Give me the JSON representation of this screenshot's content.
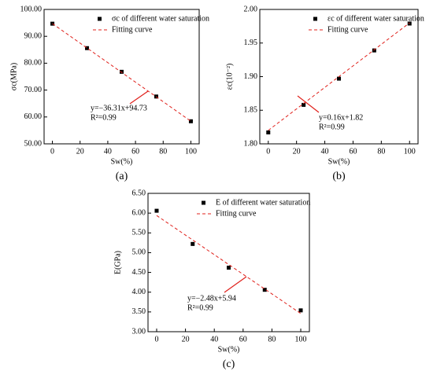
{
  "chart_data": [
    {
      "type": "scatter",
      "label": "(a)",
      "x_label": "Sw(%)",
      "y_label": "σc(MPa)",
      "xlim": [
        -6,
        106
      ],
      "xticks": [
        0,
        20,
        40,
        60,
        80,
        100
      ],
      "ylim": [
        50,
        100
      ],
      "yticks": [
        {
          "value": 50,
          "label": "50.00"
        },
        {
          "value": 60,
          "label": "60.00"
        },
        {
          "value": 70,
          "label": "70.00"
        },
        {
          "value": 80,
          "label": "80.00"
        },
        {
          "value": 90,
          "label": "90.00"
        },
        {
          "value": 100,
          "label": "100.00"
        }
      ],
      "series": [
        {
          "name": "σc of different water saturation",
          "color": "#000000",
          "x": [
            0,
            25,
            50,
            75,
            100
          ],
          "values": [
            94.7,
            85.6,
            76.8,
            67.6,
            58.4
          ]
        },
        {
          "name": "Fitting curve",
          "color": "#e0201b",
          "x": [
            0,
            100
          ],
          "values": [
            94.73,
            58.42
          ]
        }
      ],
      "annotations": [
        "y=−36.31x+94.73",
        "R²=0.99"
      ]
    },
    {
      "type": "scatter",
      "label": "(b)",
      "x_label": "Sw(%)",
      "y_label": "εc(10⁻²)",
      "xlim": [
        -6,
        106
      ],
      "xticks": [
        0,
        20,
        40,
        60,
        80,
        100
      ],
      "ylim": [
        1.8,
        2.0
      ],
      "yticks": [
        {
          "value": 1.8,
          "label": "1.80"
        },
        {
          "value": 1.85,
          "label": "1.85"
        },
        {
          "value": 1.9,
          "label": "1.90"
        },
        {
          "value": 1.95,
          "label": "1.95"
        },
        {
          "value": 2.0,
          "label": "2.00"
        }
      ],
      "series": [
        {
          "name": "εc of different water saturation",
          "color": "#000000",
          "x": [
            0,
            25,
            50,
            75,
            100
          ],
          "values": [
            1.817,
            1.858,
            1.897,
            1.939,
            1.979
          ]
        },
        {
          "name": "Fitting curve",
          "color": "#e0201b",
          "x": [
            0,
            100
          ],
          "values": [
            1.82,
            1.98
          ]
        }
      ],
      "annotations": [
        "y=0.16x+1.82",
        "R²=0.99"
      ]
    },
    {
      "type": "scatter",
      "label": "(c)",
      "x_label": "Sw(%)",
      "y_label": "E(GPa)",
      "xlim": [
        -6,
        106
      ],
      "xticks": [
        0,
        20,
        40,
        60,
        80,
        100
      ],
      "ylim": [
        3,
        6.5
      ],
      "yticks": [
        {
          "value": 3,
          "label": "3.00"
        },
        {
          "value": 3.5,
          "label": "3.50"
        },
        {
          "value": 4,
          "label": "4.00"
        },
        {
          "value": 4.5,
          "label": "4.50"
        },
        {
          "value": 5,
          "label": "5.00"
        },
        {
          "value": 5.5,
          "label": "5.50"
        },
        {
          "value": 6,
          "label": "6.00"
        },
        {
          "value": 6.5,
          "label": "6.50"
        }
      ],
      "series": [
        {
          "name": "E of different water saturation",
          "color": "#000000",
          "x": [
            0,
            25,
            50,
            75,
            100
          ],
          "values": [
            6.06,
            5.22,
            4.62,
            4.06,
            3.54
          ]
        },
        {
          "name": "Fitting curve",
          "color": "#e0201b",
          "x": [
            0,
            100
          ],
          "values": [
            5.94,
            3.46
          ]
        }
      ],
      "annotations": [
        "y=−2.48x+5.94",
        "R²=0.99"
      ]
    }
  ]
}
